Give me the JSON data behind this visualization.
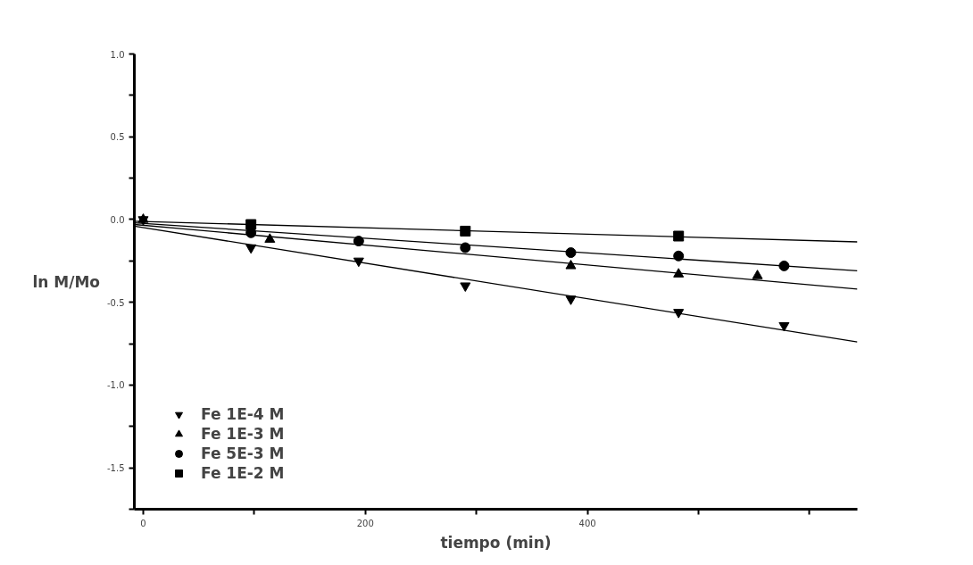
{
  "chart_data": {
    "type": "scatter",
    "xlabel": "tiempo (min)",
    "ylabel": "ln M/Mo",
    "xlim": [
      -8,
      643
    ],
    "ylim": [
      -1.75,
      1.0
    ],
    "xticks": [
      0,
      {
        "value": 100,
        "label": null
      },
      200,
      {
        "value": 300,
        "label": null
      },
      400,
      {
        "value": 500,
        "label": null
      },
      {
        "value": 600,
        "label": null
      }
    ],
    "yticks": [
      {
        "value": -1.75,
        "label": null
      },
      -1.5,
      {
        "value": -1.25,
        "label": null
      },
      {
        "value": -1.0,
        "label": "-1.0"
      },
      {
        "value": -0.75,
        "label": null
      },
      -0.5,
      {
        "value": -0.25,
        "label": null
      },
      {
        "value": 0.0,
        "label": "0.0"
      },
      {
        "value": 0.25,
        "label": null
      },
      0.5,
      {
        "value": 0.75,
        "label": null
      },
      {
        "value": 1.0,
        "label": "1.0"
      }
    ],
    "grid": false,
    "legend": "bottom left",
    "series": [
      {
        "name": "Fe 1E-4 M",
        "color": "#000000",
        "marker": "triangle_down",
        "x": [
          0,
          97,
          194,
          290,
          385,
          482,
          577
        ],
        "values": [
          0,
          -0.17,
          -0.25,
          -0.4,
          -0.48,
          -0.56,
          -0.64
        ]
      },
      {
        "name": "Fe 1E-3 M",
        "color": "#000000",
        "marker": "triangle",
        "x": [
          0,
          114,
          385,
          482,
          553
        ],
        "values": [
          0,
          -0.12,
          -0.28,
          -0.33,
          -0.34
        ]
      },
      {
        "name": "Fe 5E-3 M",
        "color": "#000000",
        "marker": "circle",
        "x": [
          97,
          194,
          290,
          385,
          482,
          577
        ],
        "values": [
          -0.08,
          -0.13,
          -0.17,
          -0.2,
          -0.22,
          -0.28
        ]
      },
      {
        "name": "Fe 1E-2 M",
        "color": "#000000",
        "marker": "square",
        "x": [
          97,
          290,
          482
        ],
        "values": [
          -0.03,
          -0.07,
          -0.1
        ]
      },
      {
        "type": "line",
        "color": "#000000",
        "line_style": "solid",
        "x": [
          -8,
          643
        ],
        "values": [
          -0.04,
          -0.74
        ]
      },
      {
        "type": "line",
        "color": "#000000",
        "line_style": "solid",
        "x": [
          -8,
          643
        ],
        "values": [
          -0.03,
          -0.42
        ]
      },
      {
        "type": "line",
        "color": "#000000",
        "line_style": "solid",
        "x": [
          -8,
          643
        ],
        "values": [
          -0.02,
          -0.31
        ]
      },
      {
        "type": "line",
        "color": "#000000",
        "line_style": "solid",
        "x": [
          -8,
          643
        ],
        "values": [
          -0.01,
          -0.135
        ]
      }
    ]
  }
}
